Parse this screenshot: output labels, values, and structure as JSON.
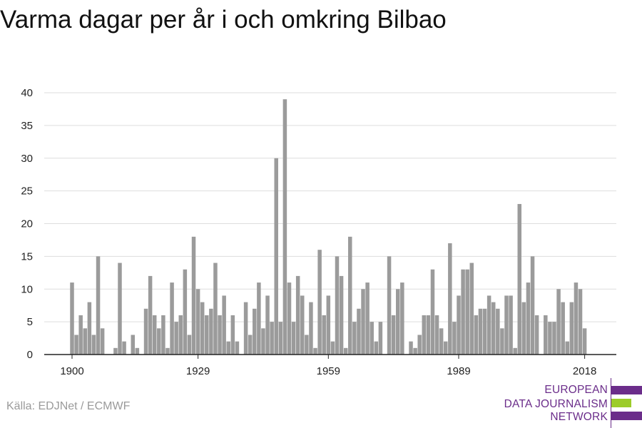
{
  "title": "Varma dagar per år i och omkring Bilbao",
  "source": "Källa: EDJNet / ECMWF",
  "logo": {
    "lines": [
      "EUROPEAN",
      "DATA JOURNALISM",
      "NETWORK"
    ],
    "colors": {
      "purple": "#6b2d8a",
      "green": "#9ccc2a"
    }
  },
  "colors": {
    "bar": "#9b9b9b",
    "grid": "#dddddd",
    "axis": "#222222"
  },
  "chart_data": {
    "type": "bar",
    "title": "",
    "xlabel": "",
    "ylabel": "",
    "ylim": [
      0,
      40
    ],
    "yticks": [
      0,
      5,
      10,
      15,
      20,
      25,
      30,
      35,
      40
    ],
    "xticks": [
      1900,
      1929,
      1959,
      1989,
      2018
    ],
    "grid": true,
    "x_start": 1900,
    "x_end": 2020,
    "values": [
      11,
      3,
      6,
      4,
      8,
      3,
      15,
      4,
      0,
      0,
      1,
      14,
      2,
      0,
      3,
      1,
      0,
      7,
      12,
      6,
      4,
      6,
      1,
      11,
      5,
      6,
      13,
      3,
      18,
      10,
      8,
      6,
      7,
      14,
      6,
      9,
      2,
      6,
      2,
      0,
      8,
      3,
      7,
      11,
      4,
      9,
      5,
      30,
      5,
      39,
      11,
      5,
      12,
      9,
      3,
      8,
      1,
      16,
      6,
      9,
      2,
      15,
      12,
      1,
      18,
      5,
      7,
      10,
      11,
      5,
      2,
      5,
      0,
      15,
      6,
      10,
      11,
      0,
      2,
      1,
      3,
      6,
      6,
      13,
      6,
      4,
      2,
      17,
      5,
      9,
      13,
      13,
      14,
      6,
      7,
      7,
      9,
      8,
      7,
      4,
      9,
      9,
      1,
      23,
      8,
      11,
      15,
      6,
      0,
      6,
      5,
      5,
      10,
      8,
      2,
      8,
      11,
      10,
      4
    ]
  }
}
